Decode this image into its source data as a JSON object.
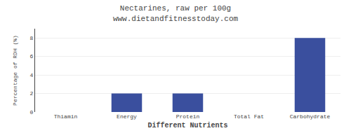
{
  "chart_data": {
    "type": "bar",
    "title": "Nectarines, raw per 100g",
    "subtitle": "www.dietandfitnesstoday.com",
    "categories": [
      "Thiamin",
      "Energy",
      "Protein",
      "Total Fat",
      "Carbohydrate"
    ],
    "values": [
      0.0,
      2.0,
      2.0,
      0.0,
      8.0
    ],
    "color": "#3a4f9e",
    "xlabel": "Different Nutrients",
    "ylabel": "Percentage of RDH (%)",
    "ylim": [
      0,
      9
    ],
    "yticks": [
      0,
      2,
      4,
      6,
      8
    ],
    "grid": true
  }
}
